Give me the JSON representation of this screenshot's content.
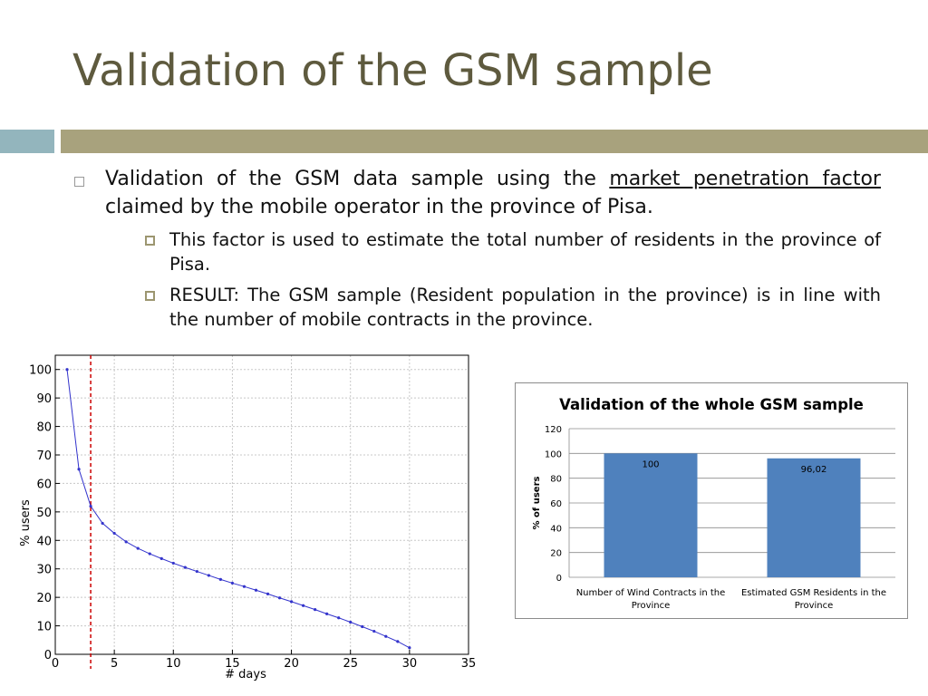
{
  "slide": {
    "title": "Validation of the GSM sample",
    "bullet1": {
      "text_a": "Validation of the GSM data sample using the ",
      "link": "market penetration factor",
      "text_b": " claimed by the mobile operator in the province of Pisa."
    },
    "sub1": "This factor is used to estimate the total number of residents in the province of Pisa.",
    "sub2": "RESULT: The GSM sample (Resident population in the province) is in line with the number of mobile contracts in the province.",
    "colors": {
      "title": "#5e5a3e",
      "band_left": "#93b5bd",
      "band_right": "#a8a27d"
    }
  },
  "chart_data": [
    {
      "type": "line",
      "title": "",
      "xlabel": "# days",
      "ylabel": "% users",
      "xlim": [
        0,
        35
      ],
      "ylim": [
        0,
        105
      ],
      "xticks": [
        0,
        5,
        10,
        15,
        20,
        25,
        30,
        35
      ],
      "yticks": [
        0,
        10,
        20,
        30,
        40,
        50,
        60,
        70,
        80,
        90,
        100
      ],
      "grid": true,
      "series": [
        {
          "color": "#3333cc",
          "x": [
            1,
            2,
            3,
            4,
            5,
            6,
            7,
            8,
            9,
            10,
            11,
            12,
            13,
            14,
            15,
            16,
            17,
            18,
            19,
            20,
            21,
            22,
            23,
            24,
            25,
            26,
            27,
            28,
            29,
            30
          ],
          "y": [
            100,
            65,
            52,
            46,
            42.5,
            39.5,
            37.2,
            35.3,
            33.6,
            32,
            30.5,
            29.1,
            27.7,
            26.3,
            25,
            23.8,
            22.5,
            21.2,
            19.8,
            18.5,
            17.1,
            15.7,
            14.2,
            12.8,
            11.3,
            9.7,
            8.1,
            6.3,
            4.5,
            2.3
          ]
        }
      ],
      "threshold_line": {
        "x": 3,
        "color": "#cc0000",
        "style": "dashed"
      }
    },
    {
      "type": "bar",
      "title": "Validation of the whole GSM sample",
      "ylabel": "% of users",
      "ylim": [
        0,
        120
      ],
      "yticks": [
        0,
        20,
        40,
        60,
        80,
        100,
        120
      ],
      "grid": true,
      "categories": [
        [
          "Number of Wind Contracts in the",
          "Province"
        ],
        [
          "Estimated GSM Residents in the",
          "Province"
        ]
      ],
      "values": [
        100,
        96.02
      ],
      "data_labels": [
        "100",
        "96,02"
      ],
      "bar_color": "#4f81bd"
    }
  ]
}
